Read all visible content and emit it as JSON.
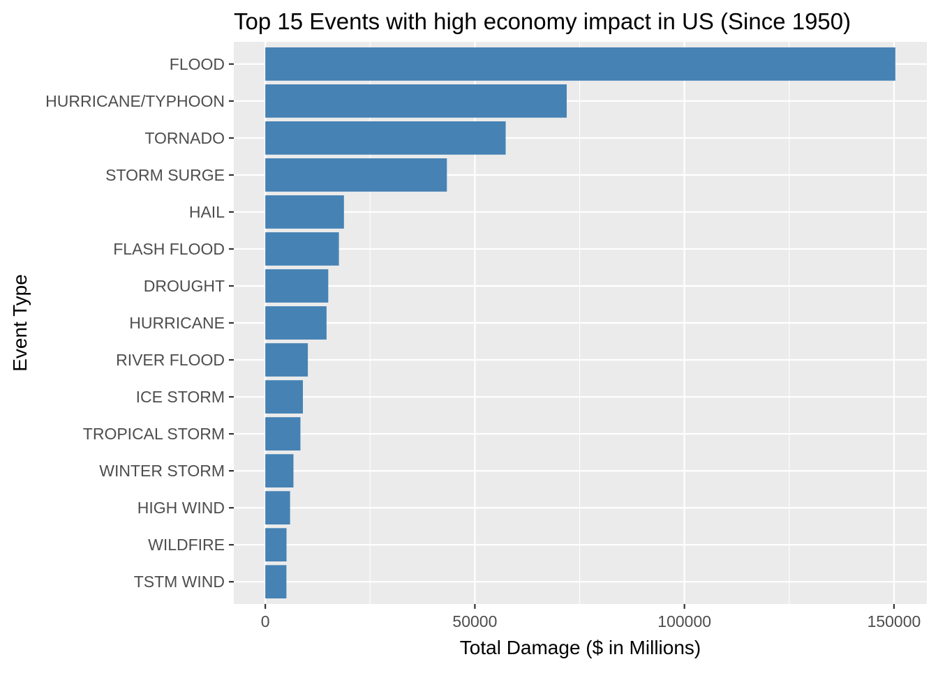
{
  "chart_data": {
    "type": "bar",
    "orientation": "horizontal",
    "title": "Top 15 Events with high economy impact in US (Since 1950)",
    "xlabel": "Total Damage ($ in Millions)",
    "ylabel": "Event Type",
    "categories": [
      "FLOOD",
      "HURRICANE/TYPHOON",
      "TORNADO",
      "STORM SURGE",
      "HAIL",
      "FLASH FLOOD",
      "DROUGHT",
      "HURRICANE",
      "RIVER FLOOD",
      "ICE STORM",
      "TROPICAL STORM",
      "WINTER STORM",
      "HIGH WIND",
      "WILDFIRE",
      "TSTM WIND"
    ],
    "values": [
      150320,
      71914,
      57352,
      43324,
      18761,
      17562,
      15019,
      14610,
      10148,
      8968,
      8382,
      6715,
      5909,
      5061,
      5038
    ],
    "xlim": [
      -7516,
      157836
    ],
    "xticks": [
      0,
      50000,
      100000,
      150000
    ],
    "xtick_labels": [
      "0",
      "50000",
      "100000",
      "150000"
    ],
    "grid": true,
    "legend": "none",
    "colors": {
      "bar": "#4682b4",
      "panel_background": "#ebebeb",
      "grid": "#ffffff",
      "tick_text": "#4d4d4d",
      "tick_mark": "#333333"
    }
  }
}
